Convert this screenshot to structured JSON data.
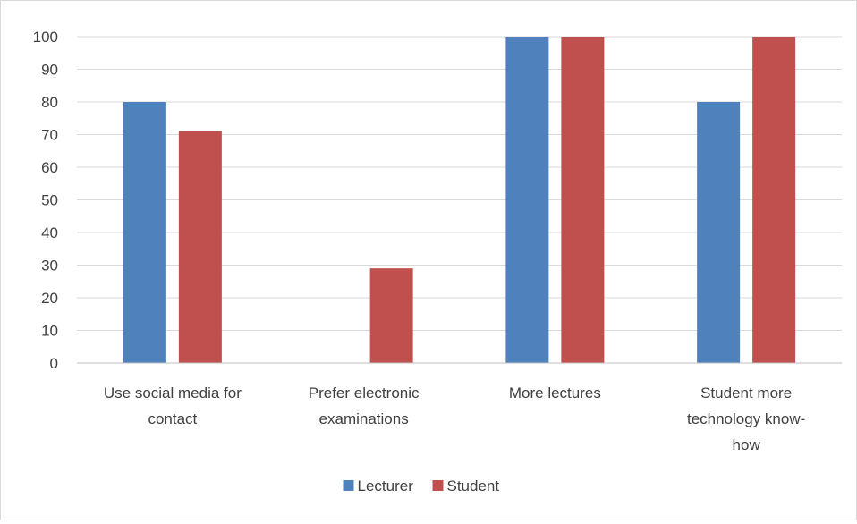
{
  "chart_data": {
    "type": "bar",
    "title": "",
    "xlabel": "",
    "ylabel": "",
    "categories": [
      [
        "Use social media for",
        "contact"
      ],
      [
        "Prefer electronic",
        "examinations"
      ],
      [
        "More lectures"
      ],
      [
        "Student more",
        "technology know-",
        "how"
      ]
    ],
    "series": [
      {
        "name": "Lecturer",
        "values": [
          80,
          0,
          100,
          80
        ],
        "color": "#4f81bd"
      },
      {
        "name": "Student",
        "values": [
          71,
          29,
          100,
          100
        ],
        "color": "#c0504d"
      }
    ],
    "ylim": [
      0,
      100
    ],
    "yticks": [
      0,
      10,
      20,
      30,
      40,
      50,
      60,
      70,
      80,
      90,
      100
    ],
    "grid": true,
    "gridline_color": "#d9d9d9",
    "legend_position": "bottom-center"
  }
}
